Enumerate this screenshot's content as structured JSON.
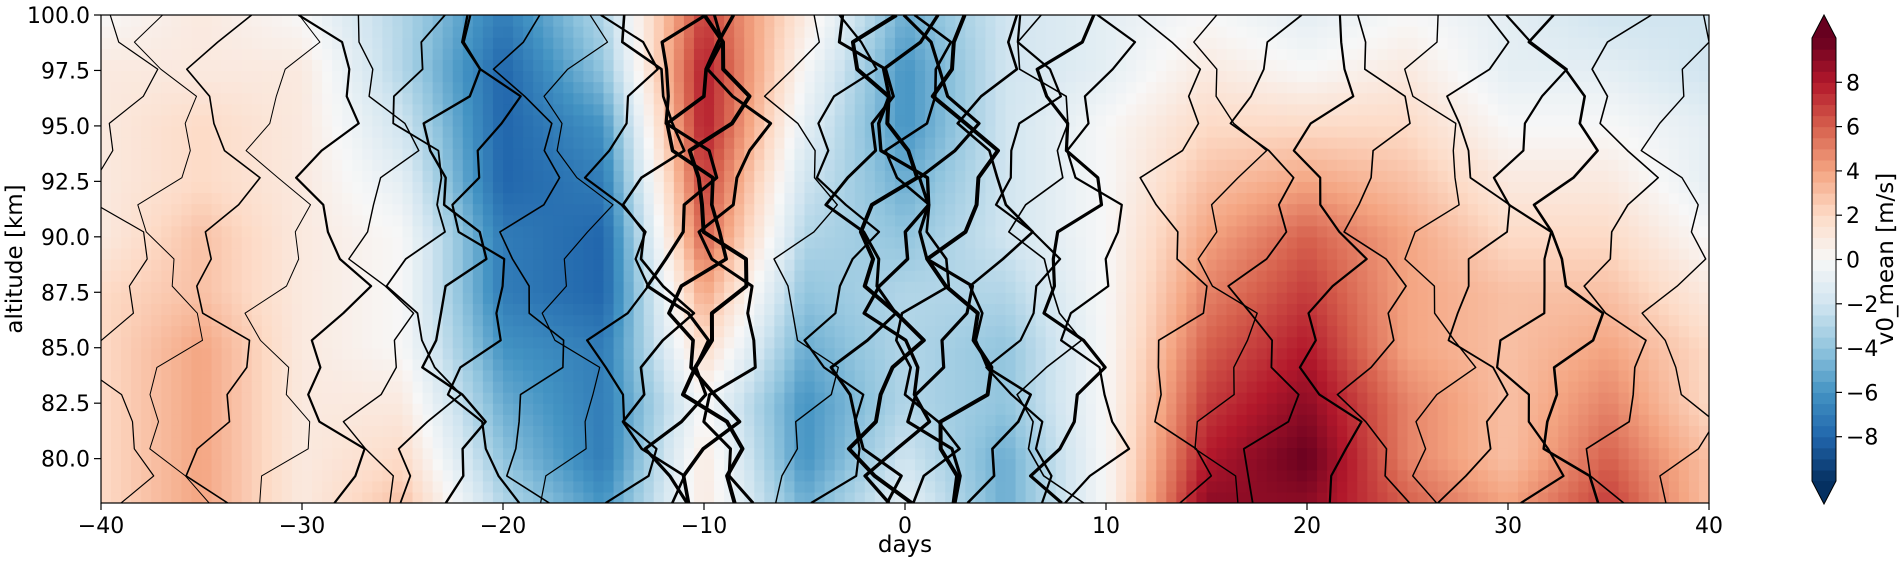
{
  "chart_data": {
    "type": "heatmap",
    "subtype": "filled-contour",
    "xlabel": "days",
    "ylabel": "altitude [km]",
    "xlim": [
      -40,
      40
    ],
    "ylim": [
      78,
      100
    ],
    "x_ticks": [
      -40,
      -30,
      -20,
      -10,
      0,
      10,
      20,
      30,
      40
    ],
    "x_tick_labels": [
      "−40",
      "−30",
      "−20",
      "−10",
      "0",
      "10",
      "20",
      "30",
      "40"
    ],
    "y_ticks": [
      80,
      82.5,
      85,
      87.5,
      90,
      92.5,
      95,
      97.5,
      100
    ],
    "y_tick_labels": [
      "80.0",
      "82.5",
      "85.0",
      "87.5",
      "90.0",
      "92.5",
      "95.0",
      "97.5",
      "100.0"
    ],
    "colorbar": {
      "label": "v0_mean [m/s]",
      "colormap": "RdBu_r",
      "range": [
        -10,
        10
      ],
      "extend": "both",
      "ticks": [
        -8,
        -6,
        -4,
        -2,
        0,
        2,
        4,
        6,
        8
      ],
      "tick_labels": [
        "−8",
        "−6",
        "−4",
        "−2",
        "0",
        "2",
        "4",
        "6",
        "8"
      ]
    },
    "field": {
      "x": [
        -40,
        -35,
        -30,
        -25,
        -20,
        -15,
        -10,
        -5,
        0,
        5,
        10,
        15,
        20,
        25,
        30,
        35,
        40
      ],
      "y": [
        78,
        80,
        82.5,
        85,
        87.5,
        90,
        92.5,
        95,
        97.5,
        100
      ],
      "values": [
        [
          2,
          4,
          1,
          3,
          -3,
          -6,
          1,
          -5,
          -1,
          -5,
          0,
          9,
          9,
          6,
          4,
          7,
          3
        ],
        [
          2,
          4,
          1,
          2,
          -4,
          -7,
          1,
          -6,
          -2,
          -5,
          0,
          8,
          10,
          5,
          3,
          6,
          3
        ],
        [
          2,
          4,
          1,
          1,
          -5,
          -7,
          0,
          -6,
          -3,
          -4,
          0,
          7,
          9,
          5,
          3,
          5,
          2
        ],
        [
          2,
          4,
          1,
          0,
          -6,
          -7,
          2,
          -5,
          -3,
          -4,
          0,
          6,
          8,
          4,
          3,
          4,
          2
        ],
        [
          2,
          3,
          1,
          0,
          -7,
          -8,
          4,
          -4,
          -3,
          -3,
          0,
          5,
          7,
          4,
          3,
          3,
          1
        ],
        [
          1,
          3,
          1,
          0,
          -7,
          -8,
          6,
          -3,
          -4,
          -2,
          0,
          4,
          6,
          4,
          2,
          2,
          0
        ],
        [
          1,
          2,
          1,
          -1,
          -8,
          -7,
          7,
          -2,
          -5,
          -2,
          0,
          3,
          4,
          3,
          1,
          1,
          -1
        ],
        [
          1,
          2,
          1,
          -2,
          -8,
          -6,
          8,
          -1,
          -6,
          -2,
          0,
          2,
          2,
          2,
          0,
          0,
          -1
        ],
        [
          1,
          1,
          1,
          -3,
          -8,
          -4,
          8,
          0,
          -6,
          -2,
          -1,
          1,
          0,
          1,
          -1,
          -1,
          -2
        ],
        [
          0,
          1,
          0,
          -3,
          -7,
          -3,
          7,
          1,
          -5,
          -2,
          -1,
          0,
          -1,
          0,
          -1,
          -2,
          -2
        ]
      ]
    },
    "contours": {
      "color": "black",
      "style": "line contours of a second field, line width varies by level"
    }
  }
}
